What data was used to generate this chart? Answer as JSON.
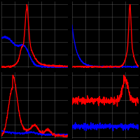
{
  "bg_color": "#000000",
  "grid_color": "#808080",
  "line_blue": "#0000ff",
  "line_red": "#ff0000",
  "fig_width": 2.0,
  "fig_height": 2.0,
  "dpi": 100,
  "n_points": 400,
  "lw": 1.0
}
